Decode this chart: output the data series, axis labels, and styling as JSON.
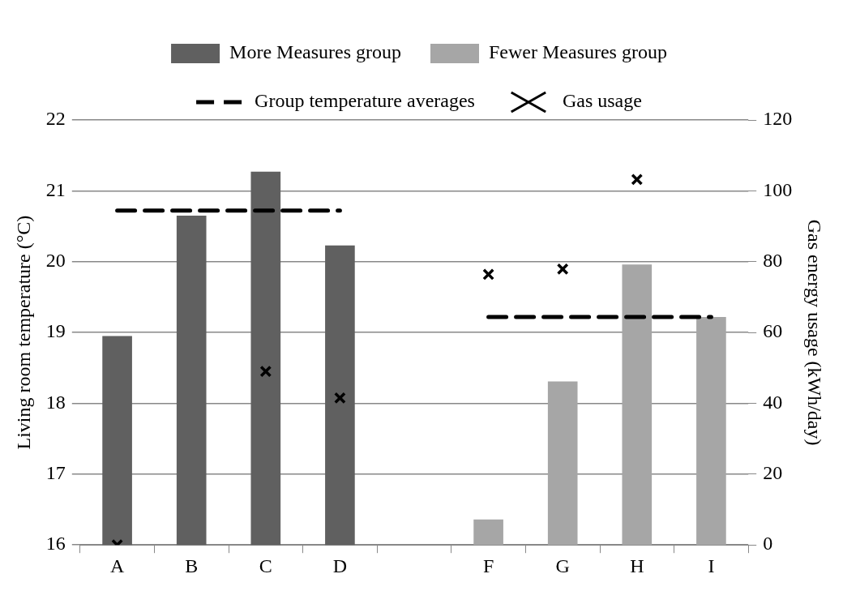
{
  "chart_data": {
    "type": "bar",
    "ylabel": "Living room temperature (°C)",
    "y2label": "Gas energy usage (kWh/day)",
    "categories": [
      "A",
      "B",
      "C",
      "D",
      null,
      "F",
      "G",
      "H",
      "I"
    ],
    "series": [
      {
        "name": "More Measures group",
        "color": "#606060",
        "values": [
          18.95,
          20.65,
          21.27,
          20.23,
          null,
          null,
          null,
          null,
          null
        ]
      },
      {
        "name": "Fewer Measures group",
        "color": "#a6a6a6",
        "values": [
          null,
          null,
          null,
          null,
          null,
          16.36,
          18.31,
          19.96,
          19.22
        ]
      },
      {
        "name": "Group temperature averages",
        "type": "line",
        "color": "#000000",
        "line_style": "dashed",
        "marker": "none",
        "values": [
          20.72,
          20.72,
          20.72,
          20.72,
          null,
          19.22,
          19.22,
          19.22,
          19.22
        ]
      },
      {
        "name": "Gas usage",
        "type": "scatter",
        "axis": "y2",
        "color": "#000000",
        "marker": "cross",
        "values": [
          0,
          null,
          49,
          41.5,
          null,
          76.4,
          77.9,
          103.2,
          null
        ]
      }
    ],
    "ylim": [
      16,
      22
    ],
    "yticks": [
      16,
      17,
      18,
      19,
      20,
      21,
      22
    ],
    "y2lim": [
      0,
      120
    ],
    "y2ticks": [
      0,
      20,
      40,
      60,
      80,
      100,
      120
    ],
    "grid": "y",
    "legend": "top"
  }
}
